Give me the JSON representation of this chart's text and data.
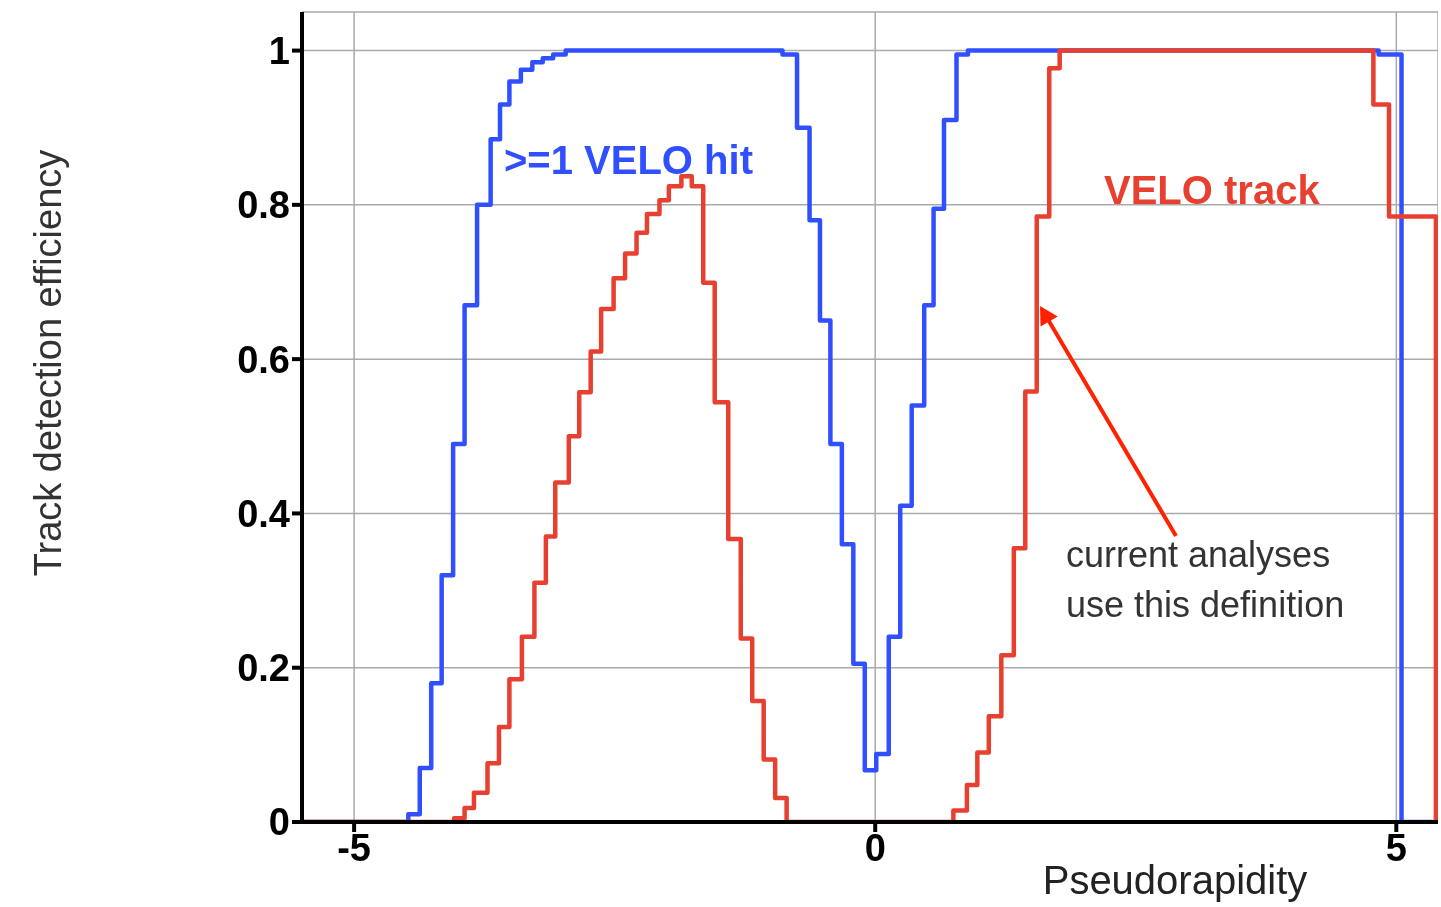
{
  "chart_data": {
    "type": "step",
    "xlabel": "Pseudorapidity",
    "ylabel": "Track detection efficiency",
    "xlim": [
      -5.5,
      5.4
    ],
    "xticks": [
      -5,
      0,
      5
    ],
    "ylim": [
      0,
      1.05
    ],
    "yticks": [
      0,
      0.2,
      0.4,
      0.6,
      0.8,
      1
    ],
    "grid": true,
    "series": [
      {
        "name": ">=1 VELO hit",
        "color": "#3050ff",
        "x": [
          -5.5,
          -4.48,
          -4.37,
          -4.26,
          -4.16,
          -4.05,
          -3.94,
          -3.82,
          -3.69,
          -3.6,
          -3.51,
          -3.4,
          -3.29,
          -3.19,
          -3.09,
          -2.97,
          -0.89,
          -0.75,
          -0.63,
          -0.53,
          -0.43,
          -0.32,
          -0.21,
          -0.1,
          0.01,
          0.13,
          0.24,
          0.35,
          0.47,
          0.56,
          0.66,
          0.78,
          0.89,
          4.83,
          5.05,
          5.4
        ],
        "values": [
          0,
          0.01,
          0.07,
          0.18,
          0.32,
          0.49,
          0.67,
          0.8,
          0.885,
          0.93,
          0.96,
          0.975,
          0.985,
          0.99,
          0.995,
          1,
          0.995,
          0.9,
          0.78,
          0.65,
          0.49,
          0.36,
          0.205,
          0.067,
          0.088,
          0.24,
          0.41,
          0.54,
          0.67,
          0.795,
          0.91,
          0.995,
          1,
          0.995,
          0,
          0
        ]
      },
      {
        "name": "VELO track",
        "color": "#e84030",
        "x": [
          -5.5,
          -4.04,
          -3.94,
          -3.85,
          -3.72,
          -3.61,
          -3.51,
          -3.39,
          -3.27,
          -3.16,
          -3.07,
          -2.94,
          -2.84,
          -2.73,
          -2.63,
          -2.51,
          -2.4,
          -2.29,
          -2.19,
          -2.07,
          -1.98,
          -1.86,
          -1.76,
          -1.65,
          -1.54,
          -1.41,
          -1.29,
          -1.18,
          -1.07,
          -0.96,
          -0.85,
          0.75,
          0.88,
          0.98,
          1.09,
          1.21,
          1.33,
          1.44,
          1.55,
          1.67,
          1.77,
          4.78,
          4.93,
          5.38,
          5.4
        ],
        "values": [
          0,
          0.005,
          0.018,
          0.038,
          0.076,
          0.123,
          0.185,
          0.24,
          0.31,
          0.37,
          0.44,
          0.5,
          0.557,
          0.61,
          0.665,
          0.705,
          0.737,
          0.764,
          0.788,
          0.806,
          0.824,
          0.837,
          0.824,
          0.699,
          0.544,
          0.367,
          0.238,
          0.157,
          0.081,
          0.031,
          0,
          0.015,
          0.048,
          0.09,
          0.137,
          0.216,
          0.355,
          0.558,
          0.785,
          0.977,
          1,
          0.93,
          0.785,
          0,
          0
        ]
      }
    ],
    "annotations": [
      "current analyses use this definition"
    ],
    "legend": false
  }
}
